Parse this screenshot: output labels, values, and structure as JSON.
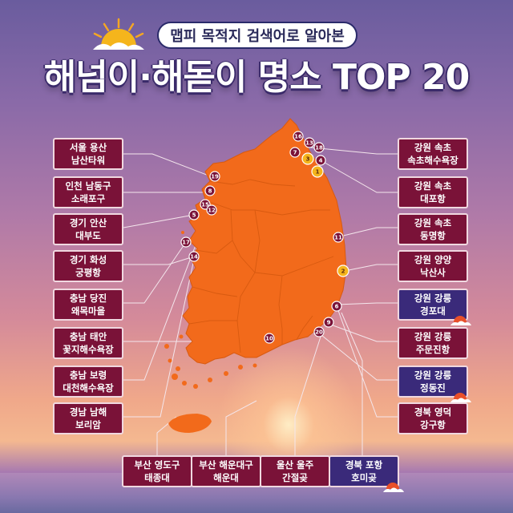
{
  "header": {
    "subtitle": "맵피 목적지 검색어로 알아본",
    "title": "해넘이·해돋이 명소 TOP 20"
  },
  "left_labels": [
    {
      "line1": "서울 용산",
      "line2": "남산타워"
    },
    {
      "line1": "인천 남동구",
      "line2": "소래포구"
    },
    {
      "line1": "경기 안산",
      "line2": "대부도"
    },
    {
      "line1": "경기 화성",
      "line2": "궁평항"
    },
    {
      "line1": "충남 당진",
      "line2": "왜목마을"
    },
    {
      "line1": "충남 태안",
      "line2": "꽃지해수욕장"
    },
    {
      "line1": "충남 보령",
      "line2": "대천해수욕장"
    },
    {
      "line1": "경남 남해",
      "line2": "보리암"
    }
  ],
  "right_labels": [
    {
      "line1": "강원 속초",
      "line2": "속초해수욕장"
    },
    {
      "line1": "강원 속초",
      "line2": "대포항"
    },
    {
      "line1": "강원 속초",
      "line2": "동명항"
    },
    {
      "line1": "강원 양양",
      "line2": "낙산사"
    },
    {
      "line1": "강원 강릉",
      "line2": "경포대"
    },
    {
      "line1": "강원 강릉",
      "line2": "주문진항"
    },
    {
      "line1": "강원 강릉",
      "line2": "정동진"
    },
    {
      "line1": "경북 영덕",
      "line2": "강구항"
    }
  ],
  "bottom_labels": [
    {
      "line1": "부산 영도구",
      "line2": "태종대"
    },
    {
      "line1": "부산 해운대구",
      "line2": "해운대"
    },
    {
      "line1": "울산 울주",
      "line2": "간절곶"
    },
    {
      "line1": "경북 포항",
      "line2": "호미곶"
    }
  ],
  "pins": [
    "1",
    "2",
    "3",
    "4",
    "5",
    "6",
    "7",
    "8",
    "9",
    "10",
    "11",
    "12",
    "13",
    "14",
    "15",
    "16",
    "17",
    "18",
    "19",
    "20"
  ],
  "colors": {
    "map_fill": "#f26a1b",
    "label_maroon": "#7a1238",
    "label_navy": "#3a2a7a",
    "pin_dark": "#7a1238",
    "pin_gold": "#f5b51c"
  }
}
